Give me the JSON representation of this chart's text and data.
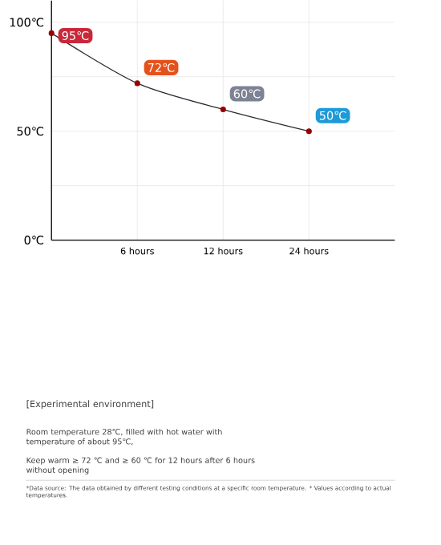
{
  "chart_data": {
    "type": "line",
    "categories": [
      null,
      "6 hours",
      "12 hours",
      "24 hours"
    ],
    "series": [
      {
        "color": "#2b2b35",
        "values": [
          95,
          72,
          60,
          50
        ],
        "value_labels": [
          "95℃",
          "72℃",
          "60℃",
          "50℃"
        ]
      }
    ],
    "ylim": [
      0,
      110
    ],
    "yticks": [
      {
        "value": 0,
        "label": "0℃"
      },
      {
        "value": 25,
        "label": null
      },
      {
        "value": 50,
        "label": "50℃"
      },
      {
        "value": 75,
        "label": null
      },
      {
        "value": 100,
        "label": "100℃"
      }
    ],
    "grid": true,
    "marker": "circle",
    "line_style": "solid",
    "annotations": [
      "[Experimental environment]",
      "Room temperature 28℃, filled with hot water with temperature of about 95℃,",
      "Keep warm ≥ 72 ℃ and ≥ 60 ℃ for 12 hours after 6 hours without opening",
      "*Data source: The data obtained by different testing conditions at a specific room temperature. * Values according to actual temperatures."
    ]
  }
}
